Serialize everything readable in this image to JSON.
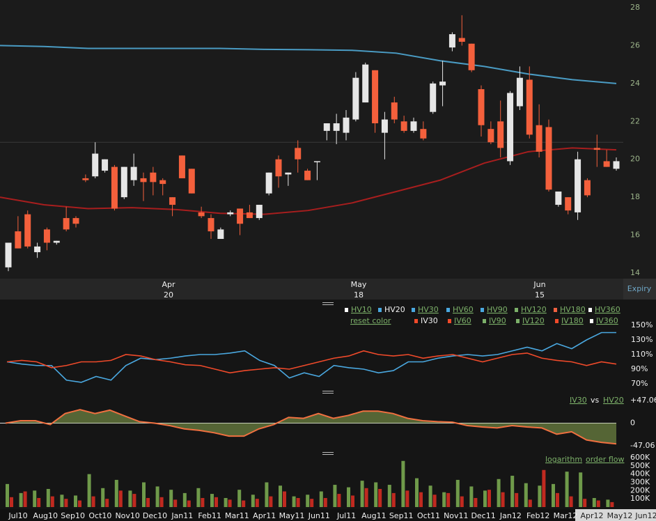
{
  "chart_data": [
    {
      "type": "candlestick",
      "open": [
        14.3,
        16.2,
        17.1,
        15.1,
        16.3,
        15.6,
        16.9,
        16.9,
        19.0,
        19.1,
        19.4,
        19.6,
        18.0,
        18.9,
        19.0,
        19.3,
        18.9,
        18.0,
        20.2,
        19.5,
        17.2,
        16.9,
        15.8,
        17.1,
        17.4,
        17.2,
        16.9,
        18.2,
        20.0,
        19.2,
        20.6,
        19.4,
        19.9,
        21.5,
        21.5,
        21.4,
        22.1,
        23.0,
        24.7,
        21.4,
        23.0,
        22.0,
        21.5,
        21.6,
        22.5,
        23.9,
        25.9,
        26.4,
        26.1,
        23.7,
        21.6,
        22.0,
        19.9,
        22.8,
        24.2,
        21.8,
        21.7,
        17.6,
        18.0,
        17.2,
        18.9,
        20.6,
        19.9,
        19.5
      ],
      "high": [
        15.6,
        17.0,
        17.3,
        15.6,
        16.4,
        15.7,
        17.5,
        17.0,
        19.2,
        20.9,
        20.0,
        19.7,
        19.6,
        20.3,
        19.3,
        19.6,
        19.0,
        18.0,
        20.2,
        19.5,
        17.5,
        17.1,
        16.4,
        17.3,
        17.4,
        17.6,
        17.6,
        19.3,
        20.2,
        19.3,
        21.0,
        19.5,
        19.9,
        21.9,
        22.4,
        22.6,
        24.6,
        25.1,
        24.7,
        22.5,
        23.3,
        22.3,
        22.2,
        22.0,
        24.1,
        25.2,
        26.7,
        27.6,
        26.1,
        23.9,
        22.0,
        23.1,
        23.6,
        24.9,
        24.9,
        22.9,
        22.1,
        18.3,
        18.0,
        20.4,
        19.0,
        21.3,
        20.5,
        20.1
      ],
      "low": [
        14.1,
        15.3,
        15.3,
        14.8,
        15.2,
        15.5,
        16.2,
        16.4,
        18.8,
        19.0,
        19.3,
        17.3,
        17.9,
        18.6,
        17.8,
        18.1,
        18.1,
        17.0,
        19.0,
        18.2,
        16.9,
        15.8,
        15.8,
        17.0,
        16.0,
        16.9,
        16.8,
        18.1,
        18.5,
        18.6,
        19.3,
        18.9,
        18.9,
        21.0,
        20.8,
        21.0,
        22.0,
        23.0,
        21.4,
        20.0,
        21.9,
        21.4,
        21.4,
        21.0,
        22.4,
        22.8,
        25.7,
        26.0,
        24.6,
        21.2,
        20.8,
        20.1,
        19.7,
        22.6,
        21.1,
        20.1,
        18.3,
        17.5,
        17.1,
        16.8,
        18.0,
        19.6,
        19.6,
        19.4
      ],
      "close": [
        15.6,
        15.3,
        15.4,
        15.4,
        15.6,
        15.7,
        16.3,
        16.6,
        18.9,
        20.3,
        20.0,
        17.4,
        19.6,
        19.6,
        18.8,
        18.8,
        18.7,
        17.6,
        19.0,
        18.2,
        17.0,
        16.2,
        16.3,
        17.2,
        16.6,
        16.9,
        17.6,
        19.3,
        19.1,
        19.3,
        20.0,
        18.9,
        19.9,
        21.9,
        21.9,
        22.2,
        24.3,
        25.0,
        21.9,
        22.1,
        22.1,
        21.5,
        22.0,
        21.1,
        24.0,
        24.1,
        26.6,
        26.2,
        24.7,
        21.8,
        20.9,
        20.6,
        23.5,
        24.3,
        21.3,
        20.4,
        18.4,
        18.3,
        17.3,
        20.0,
        18.1,
        20.5,
        19.6,
        19.9
      ],
      "up_color": "#e6e6e6",
      "down_color": "#f4603c",
      "ylim": [
        14,
        28
      ],
      "yticks": [
        14,
        16,
        18,
        20,
        22,
        24,
        26,
        28
      ],
      "overlays": [
        {
          "color": "#4a9cc4",
          "values": [
            26.0,
            25.95,
            25.85,
            25.85,
            25.85,
            25.85,
            25.8,
            25.78,
            25.75,
            25.6,
            25.2,
            24.9,
            24.5,
            24.2,
            24.0
          ]
        },
        {
          "color": "#a81e1e",
          "values": [
            18.0,
            17.6,
            17.4,
            17.45,
            17.35,
            17.15,
            17.1,
            17.3,
            17.7,
            18.3,
            18.9,
            19.8,
            20.4,
            20.6,
            20.5
          ]
        }
      ],
      "reference_line": 20.9,
      "expiry_labels": [
        {
          "month": "Apr",
          "day": "20"
        },
        {
          "month": "May",
          "day": "18"
        },
        {
          "month": "Jun",
          "day": "15"
        }
      ],
      "expiry_title": "Expiry"
    },
    {
      "type": "line",
      "series": [
        {
          "name": "HV20",
          "color": "#4aa8e0",
          "values": [
            100,
            97,
            95,
            95,
            75,
            72,
            80,
            75,
            95,
            105,
            103,
            105,
            108,
            110,
            110,
            112,
            115,
            102,
            95,
            78,
            85,
            80,
            95,
            92,
            90,
            85,
            88,
            100,
            100,
            105,
            108,
            110,
            108,
            110,
            115,
            120,
            115,
            125,
            118,
            130,
            140,
            140
          ]
        },
        {
          "name": "IV30",
          "color": "#f04a2a",
          "values": [
            100,
            102,
            100,
            92,
            95,
            100,
            100,
            102,
            110,
            108,
            103,
            100,
            96,
            95,
            90,
            85,
            88,
            90,
            92,
            90,
            95,
            100,
            105,
            108,
            115,
            110,
            108,
            110,
            105,
            108,
            110,
            105,
            100,
            105,
            110,
            112,
            105,
            102,
            100,
            95,
            100,
            97
          ]
        }
      ],
      "ylim": [
        70,
        150
      ],
      "yticks": [
        {
          "value": 70,
          "label": "70%"
        },
        {
          "value": 90,
          "label": "90%"
        },
        {
          "value": 110,
          "label": "110%"
        },
        {
          "value": 130,
          "label": "130%"
        },
        {
          "value": 150,
          "label": "150%"
        }
      ],
      "legend_hv": [
        {
          "name": "HV10",
          "color": "#ffffff",
          "active": false
        },
        {
          "name": "HV20",
          "color": "#4aa8e0",
          "active": true
        },
        {
          "name": "HV30",
          "color": "#4aa8e0",
          "active": false
        },
        {
          "name": "HV60",
          "color": "#4aa8e0",
          "active": false
        },
        {
          "name": "HV90",
          "color": "#4aa8e0",
          "active": false
        },
        {
          "name": "HV120",
          "color": "#7cb069",
          "active": false
        },
        {
          "name": "HV180",
          "color": "#f06040",
          "active": false
        },
        {
          "name": "HV360",
          "color": "#ffffff",
          "active": false
        }
      ],
      "legend_iv": [
        {
          "name": "IV30",
          "color": "#f04a2a",
          "active": true
        },
        {
          "name": "IV60",
          "color": "#f04a2a",
          "active": false
        },
        {
          "name": "IV90",
          "color": "#7cb069",
          "active": false
        },
        {
          "name": "IV120",
          "color": "#7cb069",
          "active": false
        },
        {
          "name": "IV180",
          "color": "#f04a2a",
          "active": false
        },
        {
          "name": "IV360",
          "color": "#ffffff",
          "active": false
        }
      ],
      "reset": "reset color"
    },
    {
      "type": "area",
      "values": [
        0,
        5,
        5,
        -3,
        20,
        28,
        20,
        27,
        15,
        3,
        0,
        -5,
        -12,
        -15,
        -20,
        -27,
        -27,
        -12,
        -3,
        12,
        10,
        20,
        10,
        16,
        25,
        25,
        20,
        10,
        5,
        3,
        2,
        -5,
        -8,
        -10,
        -5,
        -8,
        -10,
        -23,
        -18,
        -35,
        -40,
        -43
      ],
      "color": "#8aa850",
      "line_color": "#f07040",
      "ylim": [
        -47.06,
        47.06
      ],
      "yticks": [
        {
          "value": -47.06,
          "label": "-47.06"
        },
        0,
        {
          "value": 47.06,
          "label": "+47.06"
        }
      ],
      "label_a": "IV30",
      "label_vs": "vs",
      "label_b": "HV20"
    },
    {
      "type": "bar",
      "series": [
        {
          "color": "#6f9a4a",
          "values": [
            280000,
            170000,
            200000,
            220000,
            150000,
            140000,
            400000,
            230000,
            330000,
            200000,
            300000,
            250000,
            210000,
            170000,
            230000,
            160000,
            110000,
            210000,
            150000,
            300000,
            260000,
            130000,
            150000,
            190000,
            270000,
            240000,
            320000,
            300000,
            270000,
            560000,
            350000,
            260000,
            180000,
            330000,
            250000,
            200000,
            340000,
            380000,
            290000,
            260000,
            280000,
            430000,
            420000,
            110000,
            90000
          ]
        },
        {
          "color": "#c02a20",
          "values": [
            120000,
            190000,
            110000,
            130000,
            100000,
            80000,
            130000,
            100000,
            200000,
            160000,
            110000,
            120000,
            90000,
            80000,
            110000,
            120000,
            90000,
            80000,
            100000,
            130000,
            190000,
            110000,
            100000,
            110000,
            160000,
            140000,
            230000,
            220000,
            170000,
            200000,
            180000,
            150000,
            170000,
            130000,
            110000,
            210000,
            180000,
            170000,
            90000,
            450000,
            170000,
            130000,
            100000,
            80000,
            60000
          ]
        }
      ],
      "ylim": [
        0,
        600000
      ],
      "yticks": [
        {
          "value": 100000,
          "label": "100K"
        },
        {
          "value": 200000,
          "label": "200K"
        },
        {
          "value": 300000,
          "label": "300K"
        },
        {
          "value": 400000,
          "label": "400K"
        },
        {
          "value": 500000,
          "label": "500K"
        },
        {
          "value": 600000,
          "label": "600K"
        }
      ],
      "links": [
        "logarithm",
        "order flow"
      ],
      "x_labels": [
        "Jul10",
        "Aug10",
        "Sep10",
        "Oct10",
        "Nov10",
        "Dec10",
        "Jan11",
        "Feb11",
        "Mar11",
        "Apr11",
        "May11",
        "Jun11",
        "Jul11",
        "Aug11",
        "Sep11",
        "Oct11",
        "Nov11",
        "Dec11",
        "Jan12",
        "Feb12",
        "Mar12"
      ],
      "range_labels": [
        "Apr12",
        "May12",
        "Jun12"
      ]
    }
  ]
}
